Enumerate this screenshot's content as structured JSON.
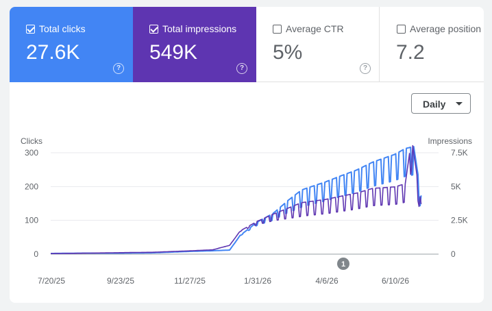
{
  "metrics": [
    {
      "label": "Total clicks",
      "value": "27.6K",
      "selected": true,
      "color": "#4285f4"
    },
    {
      "label": "Total impressions",
      "value": "549K",
      "selected": true,
      "color": "#5e35b1"
    },
    {
      "label": "Average CTR",
      "value": "5%",
      "selected": false,
      "color": "#ffffff"
    },
    {
      "label": "Average position",
      "value": "7.2",
      "selected": false,
      "color": "#ffffff"
    }
  ],
  "help_icon": "question-mark-circle-icon",
  "range_selector": {
    "value": "Daily",
    "icon": "caret-down-icon"
  },
  "annotation_marker": {
    "label": "1"
  },
  "chart_data": {
    "type": "line",
    "x_axis": {
      "type": "date",
      "ticks": [
        "7/20/25",
        "9/23/25",
        "11/27/25",
        "1/31/26",
        "4/6/26",
        "6/10/26"
      ]
    },
    "left_axis": {
      "label": "Clicks",
      "range": [
        0,
        300
      ],
      "ticks": [
        "300",
        "200",
        "100",
        "0"
      ]
    },
    "right_axis": {
      "label": "Impressions",
      "range": [
        0,
        7500
      ],
      "ticks": [
        "7.5K",
        "5K",
        "2.5K",
        "0"
      ]
    },
    "grid": true,
    "series": [
      {
        "name": "Clicks",
        "axis": "left",
        "color": "#4285f4",
        "x": [
          "2025-07-20",
          "2025-08-20",
          "2025-09-23",
          "2025-10-25",
          "2025-11-27",
          "2025-12-20",
          "2026-01-05",
          "2026-01-15",
          "2026-01-31",
          "2026-02-15",
          "2026-03-01",
          "2026-03-15",
          "2026-04-06",
          "2026-04-20",
          "2026-05-05",
          "2026-05-20",
          "2026-06-10",
          "2026-06-20",
          "2026-06-28",
          "2026-07-05"
        ],
        "y": [
          2,
          3,
          3,
          4,
          8,
          10,
          12,
          55,
          90,
          110,
          140,
          165,
          185,
          200,
          215,
          235,
          255,
          270,
          275,
          150
        ]
      },
      {
        "name": "Impressions",
        "axis": "right",
        "color": "#5e35b1",
        "x": [
          "2025-07-20",
          "2025-08-20",
          "2025-09-23",
          "2025-10-25",
          "2025-11-27",
          "2025-12-20",
          "2026-01-05",
          "2026-01-15",
          "2026-01-31",
          "2026-02-15",
          "2026-03-01",
          "2026-03-15",
          "2026-04-06",
          "2026-04-20",
          "2026-05-05",
          "2026-05-20",
          "2026-06-10",
          "2026-06-20",
          "2026-06-26",
          "2026-07-05"
        ],
        "y": [
          40,
          70,
          110,
          140,
          240,
          320,
          650,
          1700,
          2300,
          2700,
          3000,
          3300,
          3500,
          3700,
          3900,
          4200,
          4300,
          4500,
          7400,
          3200
        ]
      }
    ]
  }
}
